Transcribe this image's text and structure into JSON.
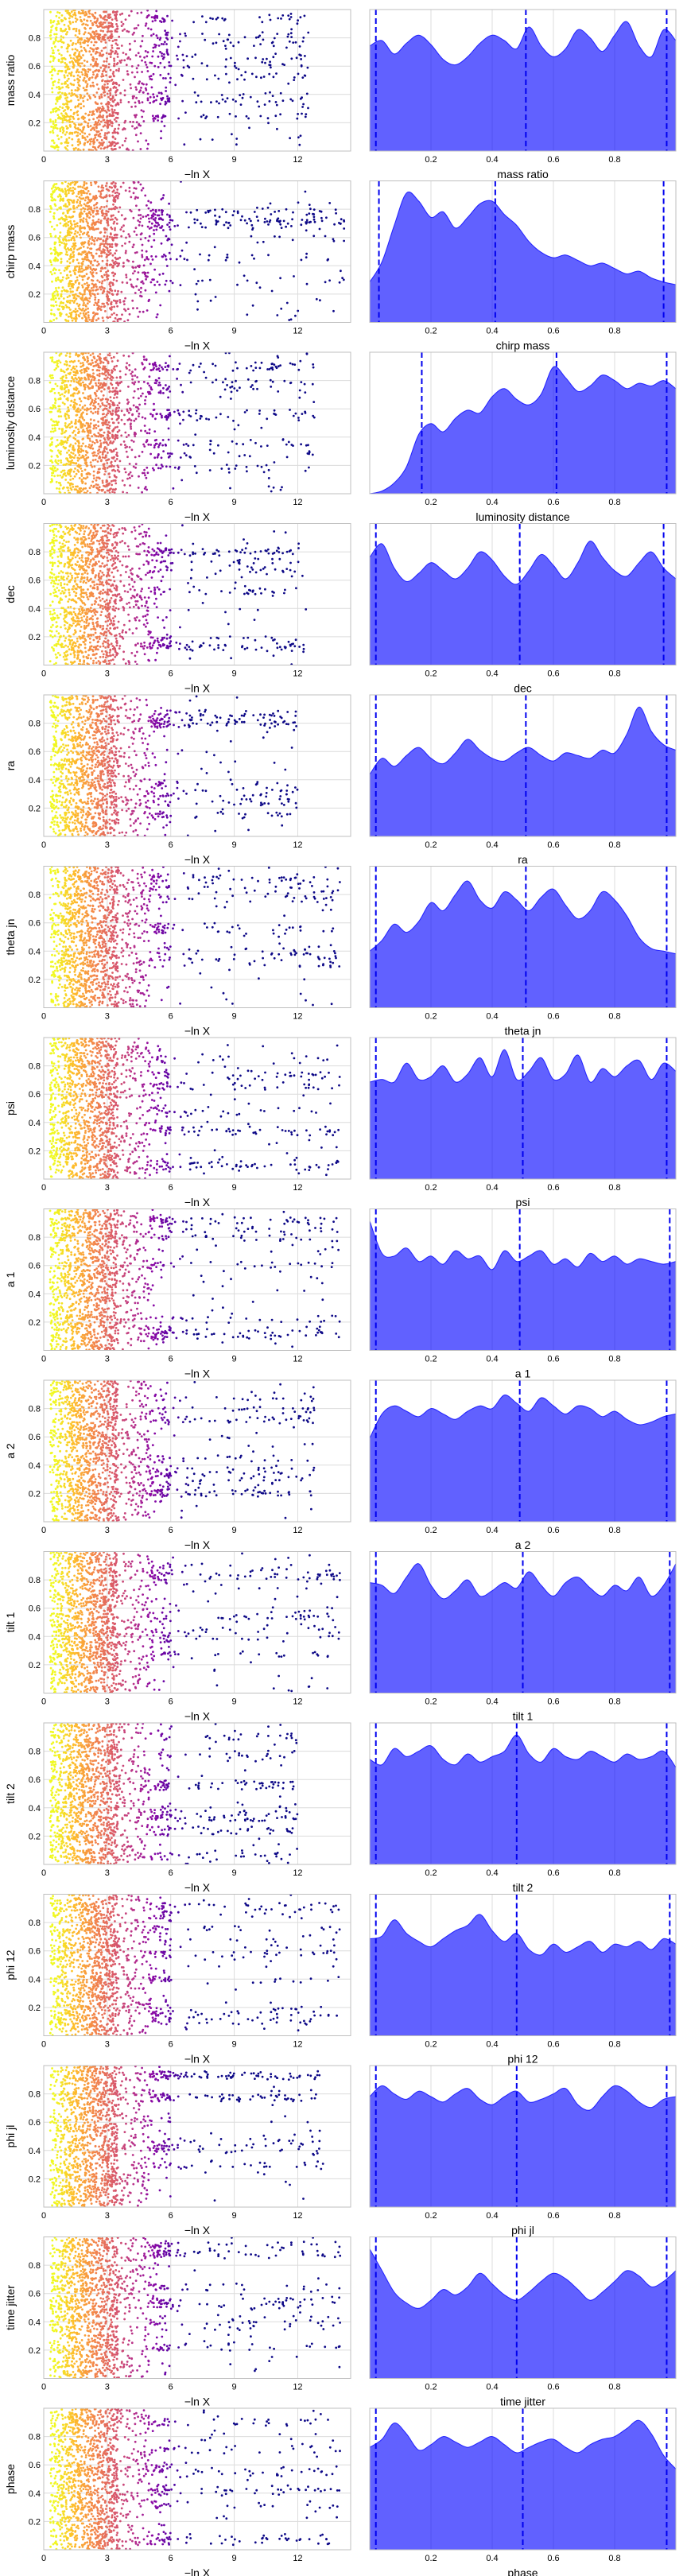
{
  "figure": {
    "x_label_left": "−ln X",
    "parameters": [
      "mass ratio",
      "chirp mass",
      "luminosity distance",
      "dec",
      "ra",
      "theta jn",
      "psi",
      "a 1",
      "a 2",
      "tilt 1",
      "tilt 2",
      "phi 12",
      "phi jl",
      "time jitter",
      "phase"
    ]
  },
  "chart_data": [
    {
      "type": "scatter",
      "panel": "trace",
      "row": 0,
      "ylabel": "mass ratio",
      "xlabel": "−ln X",
      "xlim": [
        0,
        14.5
      ],
      "ylim": [
        0,
        1
      ],
      "xticks": [
        0,
        3,
        6,
        9,
        12
      ],
      "yticks": [
        0.2,
        0.4,
        0.6,
        0.8
      ],
      "xmax_extent": 12.5,
      "color_scale": "plasma"
    },
    {
      "type": "area",
      "panel": "kde",
      "row": 0,
      "xlabel": "mass ratio",
      "xlim": [
        0,
        1
      ],
      "xticks": [
        0.2,
        0.4,
        0.6,
        0.8
      ],
      "color": "#0000ff",
      "quantiles": [
        0.02,
        0.51,
        0.97
      ],
      "density": [
        0.78,
        0.82,
        0.72,
        0.8,
        0.86,
        0.79,
        0.68,
        0.64,
        0.7,
        0.8,
        0.86,
        0.82,
        0.76,
        0.92,
        0.78,
        0.7,
        0.76,
        0.9,
        0.84,
        0.74,
        0.86,
        0.96,
        0.78,
        0.7,
        0.9,
        0.82
      ]
    },
    {
      "type": "scatter",
      "panel": "trace",
      "row": 1,
      "ylabel": "chirp mass",
      "xlabel": "−ln X",
      "xlim": [
        0,
        14.5
      ],
      "ylim": [
        0,
        1
      ],
      "xticks": [
        0,
        3,
        6,
        9,
        12
      ],
      "yticks": [
        0.2,
        0.4,
        0.6,
        0.8
      ],
      "xmax_extent": 14.2,
      "color_scale": "plasma"
    },
    {
      "type": "area",
      "panel": "kde",
      "row": 1,
      "xlabel": "chirp mass",
      "xlim": [
        0,
        1
      ],
      "xticks": [
        0.2,
        0.4,
        0.6,
        0.8
      ],
      "color": "#0000ff",
      "quantiles": [
        0.03,
        0.41,
        0.96
      ],
      "density": [
        0.3,
        0.45,
        0.72,
        0.96,
        0.9,
        0.78,
        0.82,
        0.7,
        0.78,
        0.88,
        0.9,
        0.8,
        0.72,
        0.6,
        0.52,
        0.48,
        0.5,
        0.46,
        0.42,
        0.44,
        0.4,
        0.36,
        0.38,
        0.33,
        0.3,
        0.28
      ]
    },
    {
      "type": "scatter",
      "panel": "trace",
      "row": 2,
      "ylabel": "luminosity distance",
      "xlabel": "−ln X",
      "xlim": [
        0,
        14.5
      ],
      "ylim": [
        0,
        1
      ],
      "xticks": [
        0,
        3,
        6,
        9,
        12
      ],
      "yticks": [
        0.2,
        0.4,
        0.6,
        0.8
      ],
      "xmax_extent": 12.8,
      "color_scale": "plasma"
    },
    {
      "type": "area",
      "panel": "kde",
      "row": 2,
      "xlabel": "luminosity distance",
      "xlim": [
        0,
        1
      ],
      "xticks": [
        0.2,
        0.4,
        0.6,
        0.8
      ],
      "color": "#0000ff",
      "quantiles": [
        0.17,
        0.61,
        0.97
      ],
      "density": [
        0.0,
        0.02,
        0.08,
        0.2,
        0.44,
        0.52,
        0.46,
        0.56,
        0.62,
        0.6,
        0.72,
        0.78,
        0.7,
        0.66,
        0.74,
        0.94,
        0.86,
        0.76,
        0.8,
        0.88,
        0.84,
        0.78,
        0.82,
        0.8,
        0.84,
        0.78
      ]
    },
    {
      "type": "scatter",
      "panel": "trace",
      "row": 3,
      "ylabel": "dec",
      "xlabel": "−ln X",
      "xlim": [
        0,
        14.5
      ],
      "ylim": [
        0,
        1
      ],
      "xticks": [
        0,
        3,
        6,
        9,
        12
      ],
      "yticks": [
        0.2,
        0.4,
        0.6,
        0.8
      ],
      "xmax_extent": 12.4,
      "color_scale": "plasma"
    },
    {
      "type": "area",
      "panel": "kde",
      "row": 3,
      "xlabel": "dec",
      "xlim": [
        0,
        1
      ],
      "xticks": [
        0.2,
        0.4,
        0.6,
        0.8
      ],
      "color": "#0000ff",
      "quantiles": [
        0.02,
        0.49,
        0.96
      ],
      "density": [
        0.8,
        0.9,
        0.72,
        0.62,
        0.68,
        0.76,
        0.7,
        0.64,
        0.72,
        0.84,
        0.78,
        0.66,
        0.6,
        0.7,
        0.82,
        0.74,
        0.64,
        0.76,
        0.92,
        0.8,
        0.7,
        0.66,
        0.76,
        0.84,
        0.72,
        0.64
      ]
    },
    {
      "type": "scatter",
      "panel": "trace",
      "row": 4,
      "ylabel": "ra",
      "xlabel": "−ln X",
      "xlim": [
        0,
        14.5
      ],
      "ylim": [
        0,
        1
      ],
      "xticks": [
        0,
        3,
        6,
        9,
        12
      ],
      "yticks": [
        0.2,
        0.4,
        0.6,
        0.8
      ],
      "xmax_extent": 12.0,
      "color_scale": "plasma"
    },
    {
      "type": "area",
      "panel": "kde",
      "row": 4,
      "xlabel": "ra",
      "xlim": [
        0,
        1
      ],
      "xticks": [
        0.2,
        0.4,
        0.6,
        0.8
      ],
      "color": "#0000ff",
      "quantiles": [
        0.02,
        0.51,
        0.97
      ],
      "density": [
        0.46,
        0.58,
        0.52,
        0.6,
        0.66,
        0.58,
        0.54,
        0.62,
        0.72,
        0.64,
        0.58,
        0.56,
        0.62,
        0.66,
        0.6,
        0.56,
        0.62,
        0.6,
        0.58,
        0.64,
        0.62,
        0.76,
        0.96,
        0.78,
        0.68,
        0.64
      ]
    },
    {
      "type": "scatter",
      "panel": "trace",
      "row": 5,
      "ylabel": "theta jn",
      "xlabel": "−ln X",
      "xlim": [
        0,
        14.5
      ],
      "ylim": [
        0,
        1
      ],
      "xticks": [
        0,
        3,
        6,
        9,
        12
      ],
      "yticks": [
        0.2,
        0.4,
        0.6,
        0.8
      ],
      "xmax_extent": 14.0,
      "color_scale": "plasma"
    },
    {
      "type": "area",
      "panel": "kde",
      "row": 5,
      "xlabel": "theta jn",
      "xlim": [
        0,
        1
      ],
      "xticks": [
        0.2,
        0.4,
        0.6,
        0.8
      ],
      "color": "#0000ff",
      "quantiles": [
        0.02,
        0.51,
        0.97
      ],
      "density": [
        0.42,
        0.5,
        0.62,
        0.56,
        0.64,
        0.78,
        0.72,
        0.84,
        0.94,
        0.8,
        0.74,
        0.86,
        0.8,
        0.72,
        0.82,
        0.88,
        0.76,
        0.66,
        0.72,
        0.86,
        0.8,
        0.68,
        0.52,
        0.44,
        0.42,
        0.4
      ]
    },
    {
      "type": "scatter",
      "panel": "trace",
      "row": 6,
      "ylabel": "psi",
      "xlabel": "−ln X",
      "xlim": [
        0,
        14.5
      ],
      "ylim": [
        0,
        1
      ],
      "xticks": [
        0,
        3,
        6,
        9,
        12
      ],
      "yticks": [
        0.2,
        0.4,
        0.6,
        0.8
      ],
      "xmax_extent": 14.0,
      "color_scale": "plasma"
    },
    {
      "type": "area",
      "panel": "kde",
      "row": 6,
      "xlabel": "psi",
      "xlim": [
        0,
        1
      ],
      "xticks": [
        0.2,
        0.4,
        0.6,
        0.8
      ],
      "color": "#0000ff",
      "quantiles": [
        0.02,
        0.5,
        0.97
      ],
      "density": [
        0.72,
        0.74,
        0.72,
        0.86,
        0.74,
        0.76,
        0.84,
        0.72,
        0.78,
        0.9,
        0.76,
        0.96,
        0.74,
        0.8,
        0.9,
        0.74,
        0.78,
        0.92,
        0.72,
        0.82,
        0.76,
        0.84,
        0.88,
        0.74,
        0.86,
        0.8
      ]
    },
    {
      "type": "scatter",
      "panel": "trace",
      "row": 7,
      "ylabel": "a 1",
      "xlabel": "−ln X",
      "xlim": [
        0,
        14.5
      ],
      "ylim": [
        0,
        1
      ],
      "xticks": [
        0,
        3,
        6,
        9,
        12
      ],
      "yticks": [
        0.2,
        0.4,
        0.6,
        0.8
      ],
      "xmax_extent": 14.0,
      "color_scale": "plasma"
    },
    {
      "type": "area",
      "panel": "kde",
      "row": 7,
      "xlabel": "a 1",
      "xlim": [
        0,
        1
      ],
      "xticks": [
        0.2,
        0.4,
        0.6,
        0.8
      ],
      "color": "#0000ff",
      "quantiles": [
        0.02,
        0.49,
        0.98
      ],
      "density": [
        0.96,
        0.72,
        0.7,
        0.76,
        0.66,
        0.7,
        0.64,
        0.74,
        0.68,
        0.7,
        0.6,
        0.74,
        0.66,
        0.7,
        0.74,
        0.64,
        0.68,
        0.62,
        0.72,
        0.66,
        0.7,
        0.64,
        0.68,
        0.66,
        0.64,
        0.66
      ]
    },
    {
      "type": "scatter",
      "panel": "trace",
      "row": 8,
      "ylabel": "a 2",
      "xlabel": "−ln X",
      "xlim": [
        0,
        14.5
      ],
      "ylim": [
        0,
        1
      ],
      "xticks": [
        0,
        3,
        6,
        9,
        12
      ],
      "yticks": [
        0.2,
        0.4,
        0.6,
        0.8
      ],
      "xmax_extent": 12.8,
      "color_scale": "plasma"
    },
    {
      "type": "area",
      "panel": "kde",
      "row": 8,
      "xlabel": "a 2",
      "xlim": [
        0,
        1
      ],
      "xticks": [
        0.2,
        0.4,
        0.6,
        0.8
      ],
      "color": "#0000ff",
      "quantiles": [
        0.02,
        0.49,
        0.97
      ],
      "density": [
        0.62,
        0.8,
        0.86,
        0.82,
        0.78,
        0.84,
        0.8,
        0.76,
        0.82,
        0.86,
        0.84,
        0.94,
        0.88,
        0.82,
        0.92,
        0.86,
        0.8,
        0.86,
        0.84,
        0.78,
        0.82,
        0.76,
        0.72,
        0.74,
        0.78,
        0.8
      ]
    },
    {
      "type": "scatter",
      "panel": "trace",
      "row": 9,
      "ylabel": "tilt 1",
      "xlabel": "−ln X",
      "xlim": [
        0,
        14.5
      ],
      "ylim": [
        0,
        1
      ],
      "xticks": [
        0,
        3,
        6,
        9,
        12
      ],
      "yticks": [
        0.2,
        0.4,
        0.6,
        0.8
      ],
      "xmax_extent": 14.0,
      "color_scale": "plasma"
    },
    {
      "type": "area",
      "panel": "kde",
      "row": 9,
      "xlabel": "tilt 1",
      "xlim": [
        0,
        1
      ],
      "xticks": [
        0.2,
        0.4,
        0.6,
        0.8
      ],
      "color": "#0000ff",
      "quantiles": [
        0.02,
        0.5,
        0.98
      ],
      "density": [
        0.82,
        0.8,
        0.74,
        0.86,
        0.96,
        0.8,
        0.7,
        0.76,
        0.84,
        0.72,
        0.76,
        0.82,
        0.78,
        0.9,
        0.8,
        0.72,
        0.82,
        0.86,
        0.78,
        0.72,
        0.8,
        0.76,
        0.86,
        0.72,
        0.8,
        0.96
      ]
    },
    {
      "type": "scatter",
      "panel": "trace",
      "row": 10,
      "ylabel": "tilt 2",
      "xlabel": "−ln X",
      "xlim": [
        0,
        14.5
      ],
      "ylim": [
        0,
        1
      ],
      "xticks": [
        0,
        3,
        6,
        9,
        12
      ],
      "yticks": [
        0.2,
        0.4,
        0.6,
        0.8
      ],
      "xmax_extent": 12.0,
      "color_scale": "plasma"
    },
    {
      "type": "area",
      "panel": "kde",
      "row": 10,
      "xlabel": "tilt 2",
      "xlim": [
        0,
        1
      ],
      "xticks": [
        0.2,
        0.4,
        0.6,
        0.8
      ],
      "color": "#0000ff",
      "quantiles": [
        0.02,
        0.48,
        0.97
      ],
      "density": [
        0.78,
        0.74,
        0.86,
        0.8,
        0.84,
        0.88,
        0.78,
        0.74,
        0.82,
        0.76,
        0.8,
        0.84,
        0.96,
        0.82,
        0.76,
        0.86,
        0.8,
        0.78,
        0.84,
        0.8,
        0.76,
        0.82,
        0.78,
        0.8,
        0.84,
        0.72
      ]
    },
    {
      "type": "scatter",
      "panel": "trace",
      "row": 11,
      "ylabel": "phi 12",
      "xlabel": "−ln X",
      "xlim": [
        0,
        14.5
      ],
      "ylim": [
        0,
        1
      ],
      "xticks": [
        0,
        3,
        6,
        9,
        12
      ],
      "yticks": [
        0.2,
        0.4,
        0.6,
        0.8
      ],
      "xmax_extent": 14.0,
      "color_scale": "plasma"
    },
    {
      "type": "area",
      "panel": "kde",
      "row": 11,
      "xlabel": "phi 12",
      "xlim": [
        0,
        1
      ],
      "xticks": [
        0.2,
        0.4,
        0.6,
        0.8
      ],
      "color": "#0000ff",
      "quantiles": [
        0.02,
        0.48,
        0.98
      ],
      "density": [
        0.72,
        0.74,
        0.86,
        0.76,
        0.7,
        0.66,
        0.72,
        0.78,
        0.82,
        0.9,
        0.78,
        0.7,
        0.76,
        0.64,
        0.6,
        0.68,
        0.62,
        0.66,
        0.7,
        0.62,
        0.68,
        0.66,
        0.7,
        0.64,
        0.72,
        0.68
      ]
    },
    {
      "type": "scatter",
      "panel": "trace",
      "row": 12,
      "ylabel": "phi jl",
      "xlabel": "−ln X",
      "xlim": [
        0,
        14.5
      ],
      "ylim": [
        0,
        1
      ],
      "xticks": [
        0,
        3,
        6,
        9,
        12
      ],
      "yticks": [
        0.2,
        0.4,
        0.6,
        0.8
      ],
      "xmax_extent": 13.2,
      "color_scale": "plasma"
    },
    {
      "type": "area",
      "panel": "kde",
      "row": 12,
      "xlabel": "phi jl",
      "xlim": [
        0,
        1
      ],
      "xticks": [
        0.2,
        0.4,
        0.6,
        0.8
      ],
      "color": "#0000ff",
      "quantiles": [
        0.02,
        0.48,
        0.97
      ],
      "density": [
        0.82,
        0.9,
        0.84,
        0.8,
        0.86,
        0.82,
        0.78,
        0.84,
        0.88,
        0.8,
        0.76,
        0.82,
        0.86,
        0.78,
        0.8,
        0.84,
        0.88,
        0.76,
        0.72,
        0.82,
        0.9,
        0.86,
        0.78,
        0.74,
        0.8,
        0.82
      ]
    },
    {
      "type": "scatter",
      "panel": "trace",
      "row": 13,
      "ylabel": "time jitter",
      "xlabel": "−ln X",
      "xlim": [
        0,
        14.5
      ],
      "ylim": [
        0,
        1
      ],
      "xticks": [
        0,
        3,
        6,
        9,
        12
      ],
      "yticks": [
        0.2,
        0.4,
        0.6,
        0.8
      ],
      "xmax_extent": 14.0,
      "color_scale": "plasma"
    },
    {
      "type": "area",
      "panel": "kde",
      "row": 13,
      "xlabel": "time jitter",
      "xlim": [
        0,
        1
      ],
      "xticks": [
        0.2,
        0.4,
        0.6,
        0.8
      ],
      "color": "#0000ff",
      "quantiles": [
        0.02,
        0.48,
        0.97
      ],
      "density": [
        0.96,
        0.8,
        0.64,
        0.56,
        0.52,
        0.58,
        0.66,
        0.62,
        0.68,
        0.78,
        0.7,
        0.62,
        0.58,
        0.64,
        0.72,
        0.78,
        0.74,
        0.66,
        0.58,
        0.64,
        0.72,
        0.8,
        0.76,
        0.68,
        0.72,
        0.8
      ]
    },
    {
      "type": "scatter",
      "panel": "trace",
      "row": 14,
      "ylabel": "phase",
      "xlabel": "−ln X",
      "xlim": [
        0,
        14.5
      ],
      "ylim": [
        0,
        1
      ],
      "xticks": [
        0,
        3,
        6,
        9,
        12
      ],
      "yticks": [
        0.2,
        0.4,
        0.6,
        0.8
      ],
      "xmax_extent": 14.0,
      "color_scale": "plasma"
    },
    {
      "type": "area",
      "panel": "kde",
      "row": 14,
      "xlabel": "phase",
      "xlim": [
        0,
        1
      ],
      "xticks": [
        0.2,
        0.4,
        0.6,
        0.8
      ],
      "color": "#0000ff",
      "quantiles": [
        0.02,
        0.5,
        0.97
      ],
      "density": [
        0.76,
        0.82,
        0.94,
        0.86,
        0.74,
        0.78,
        0.84,
        0.8,
        0.76,
        0.8,
        0.84,
        0.78,
        0.72,
        0.76,
        0.8,
        0.82,
        0.76,
        0.72,
        0.78,
        0.82,
        0.84,
        0.9,
        0.96,
        0.86,
        0.7,
        0.6
      ]
    }
  ]
}
